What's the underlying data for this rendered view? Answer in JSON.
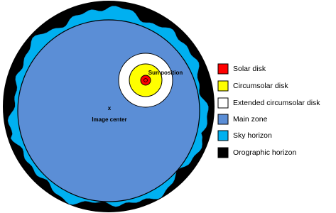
{
  "labels": {
    "sun_position": "Sun position",
    "x_marker": "x",
    "image_center": "Image center"
  },
  "legend": {
    "items": [
      "Solar disk",
      "Circumsolar disk",
      "Extended circumsolar disk",
      "Main zone",
      "Sky horizon",
      "Orographic horizon"
    ]
  }
}
